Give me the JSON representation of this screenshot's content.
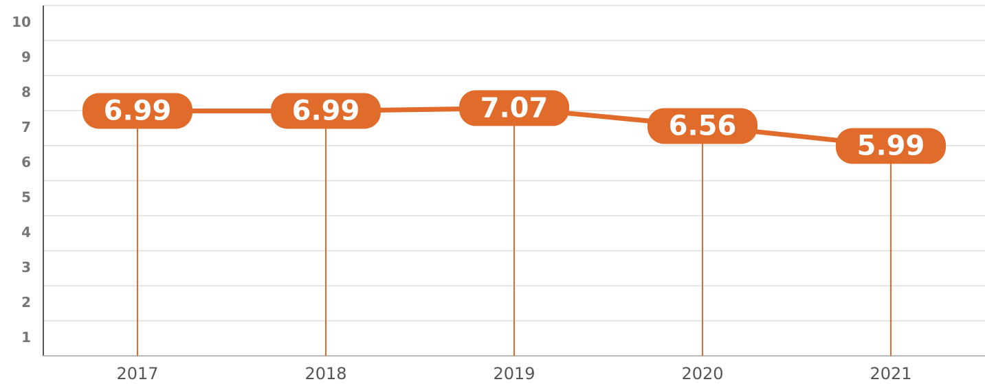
{
  "chart_data": {
    "type": "line",
    "categories": [
      "2017",
      "2018",
      "2019",
      "2020",
      "2021"
    ],
    "values": [
      6.99,
      6.99,
      7.07,
      6.56,
      5.99
    ],
    "color": "#e06b2a",
    "ylim": [
      0,
      10
    ],
    "yticks": [
      1,
      2,
      3,
      4,
      5,
      6,
      7,
      8,
      9,
      10
    ],
    "grid": true
  }
}
